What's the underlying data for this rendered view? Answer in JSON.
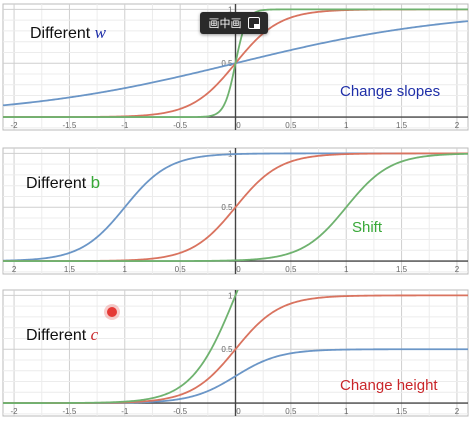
{
  "colors": {
    "blue": "#6b96c7",
    "red": "#d9735f",
    "green": "#6fb26f",
    "grid": "#dcdcdc",
    "axis": "#444444",
    "note_blue": "#1f2fa8",
    "note_green": "#38a838",
    "note_red": "#c9262a"
  },
  "overlay": {
    "pip_label": "画中画",
    "pip_icon": "pip-icon"
  },
  "chart_data": [
    {
      "type": "line",
      "title_prefix": "Different",
      "title_var": "w",
      "annotation": "Change slopes",
      "xlim": [
        -2.1,
        2.1
      ],
      "ylim": [
        -0.12,
        1.05
      ],
      "x_ticks": [
        "-2",
        "-1.5",
        "-1",
        "-0.5",
        "0",
        "0.5",
        "1",
        "1.5",
        "2"
      ],
      "y_ticks": [
        "1",
        "0.5"
      ],
      "series": [
        {
          "color": "blue",
          "function": "sigmoid",
          "w": 1,
          "b": 0,
          "c": 1
        },
        {
          "color": "red",
          "function": "sigmoid",
          "w": 5,
          "b": 0,
          "c": 1
        },
        {
          "color": "green",
          "function": "sigmoid",
          "w": 20,
          "b": 0,
          "c": 1
        }
      ]
    },
    {
      "type": "line",
      "title_prefix": "Different",
      "title_var": "b",
      "annotation": "Shift",
      "xlim": [
        -2.1,
        2.1
      ],
      "ylim": [
        -0.12,
        1.05
      ],
      "x_ticks": [
        "2",
        "1.5",
        "1",
        "0.5",
        "0",
        "0.5",
        "1",
        "1.5",
        "2"
      ],
      "y_ticks": [
        "1",
        "0.5"
      ],
      "series": [
        {
          "color": "blue",
          "function": "sigmoid",
          "w": 5,
          "b": 5,
          "c": 1
        },
        {
          "color": "red",
          "function": "sigmoid",
          "w": 5,
          "b": 0,
          "c": 1
        },
        {
          "color": "green",
          "function": "sigmoid",
          "w": 5,
          "b": -5,
          "c": 1
        }
      ]
    },
    {
      "type": "line",
      "title_prefix": "Different",
      "title_var": "c",
      "annotation": "Change height",
      "xlim": [
        -2.1,
        2.1
      ],
      "ylim": [
        -0.12,
        1.05
      ],
      "x_ticks": [
        "-2",
        "-1.5",
        "-1",
        "-0.5",
        "0",
        "0.5",
        "1",
        "1.5",
        "2"
      ],
      "y_ticks": [
        "1",
        "0.5"
      ],
      "series": [
        {
          "color": "blue",
          "function": "sigmoid",
          "w": 5,
          "b": 0,
          "c": 0.5
        },
        {
          "color": "red",
          "function": "sigmoid",
          "w": 5,
          "b": 0,
          "c": 1
        },
        {
          "color": "green",
          "function": "sigmoid",
          "w": 5,
          "b": 0,
          "c": 2
        }
      ]
    }
  ]
}
